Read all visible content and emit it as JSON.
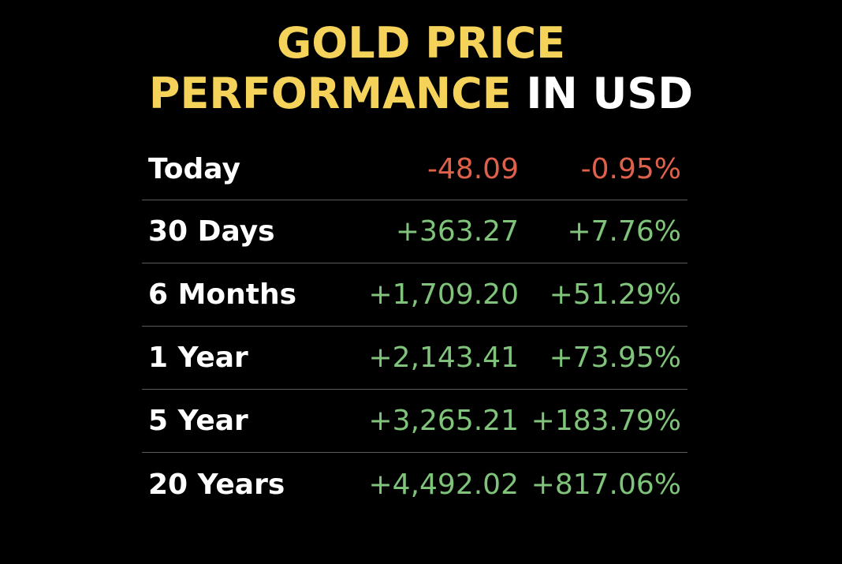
{
  "title": {
    "line1": "GOLD PRICE",
    "line2_highlight": "PERFORMANCE",
    "line2_rest": "IN USD"
  },
  "colors": {
    "background": "#000000",
    "title_gold": "#f5d25a",
    "title_white": "#ffffff",
    "negative": "#e0614b",
    "positive": "#7fc47a",
    "divider": "#5a5a5a"
  },
  "rows": [
    {
      "label": "Today",
      "change": "-48.09",
      "percent": "-0.95%",
      "direction": "negative"
    },
    {
      "label": "30 Days",
      "change": "+363.27",
      "percent": "+7.76%",
      "direction": "positive"
    },
    {
      "label": "6 Months",
      "change": "+1,709.20",
      "percent": "+51.29%",
      "direction": "positive"
    },
    {
      "label": "1 Year",
      "change": "+2,143.41",
      "percent": "+73.95%",
      "direction": "positive"
    },
    {
      "label": "5 Year",
      "change": "+3,265.21",
      "percent": "+183.79%",
      "direction": "positive"
    },
    {
      "label": "20 Years",
      "change": "+4,492.02",
      "percent": "+817.06%",
      "direction": "positive"
    }
  ]
}
